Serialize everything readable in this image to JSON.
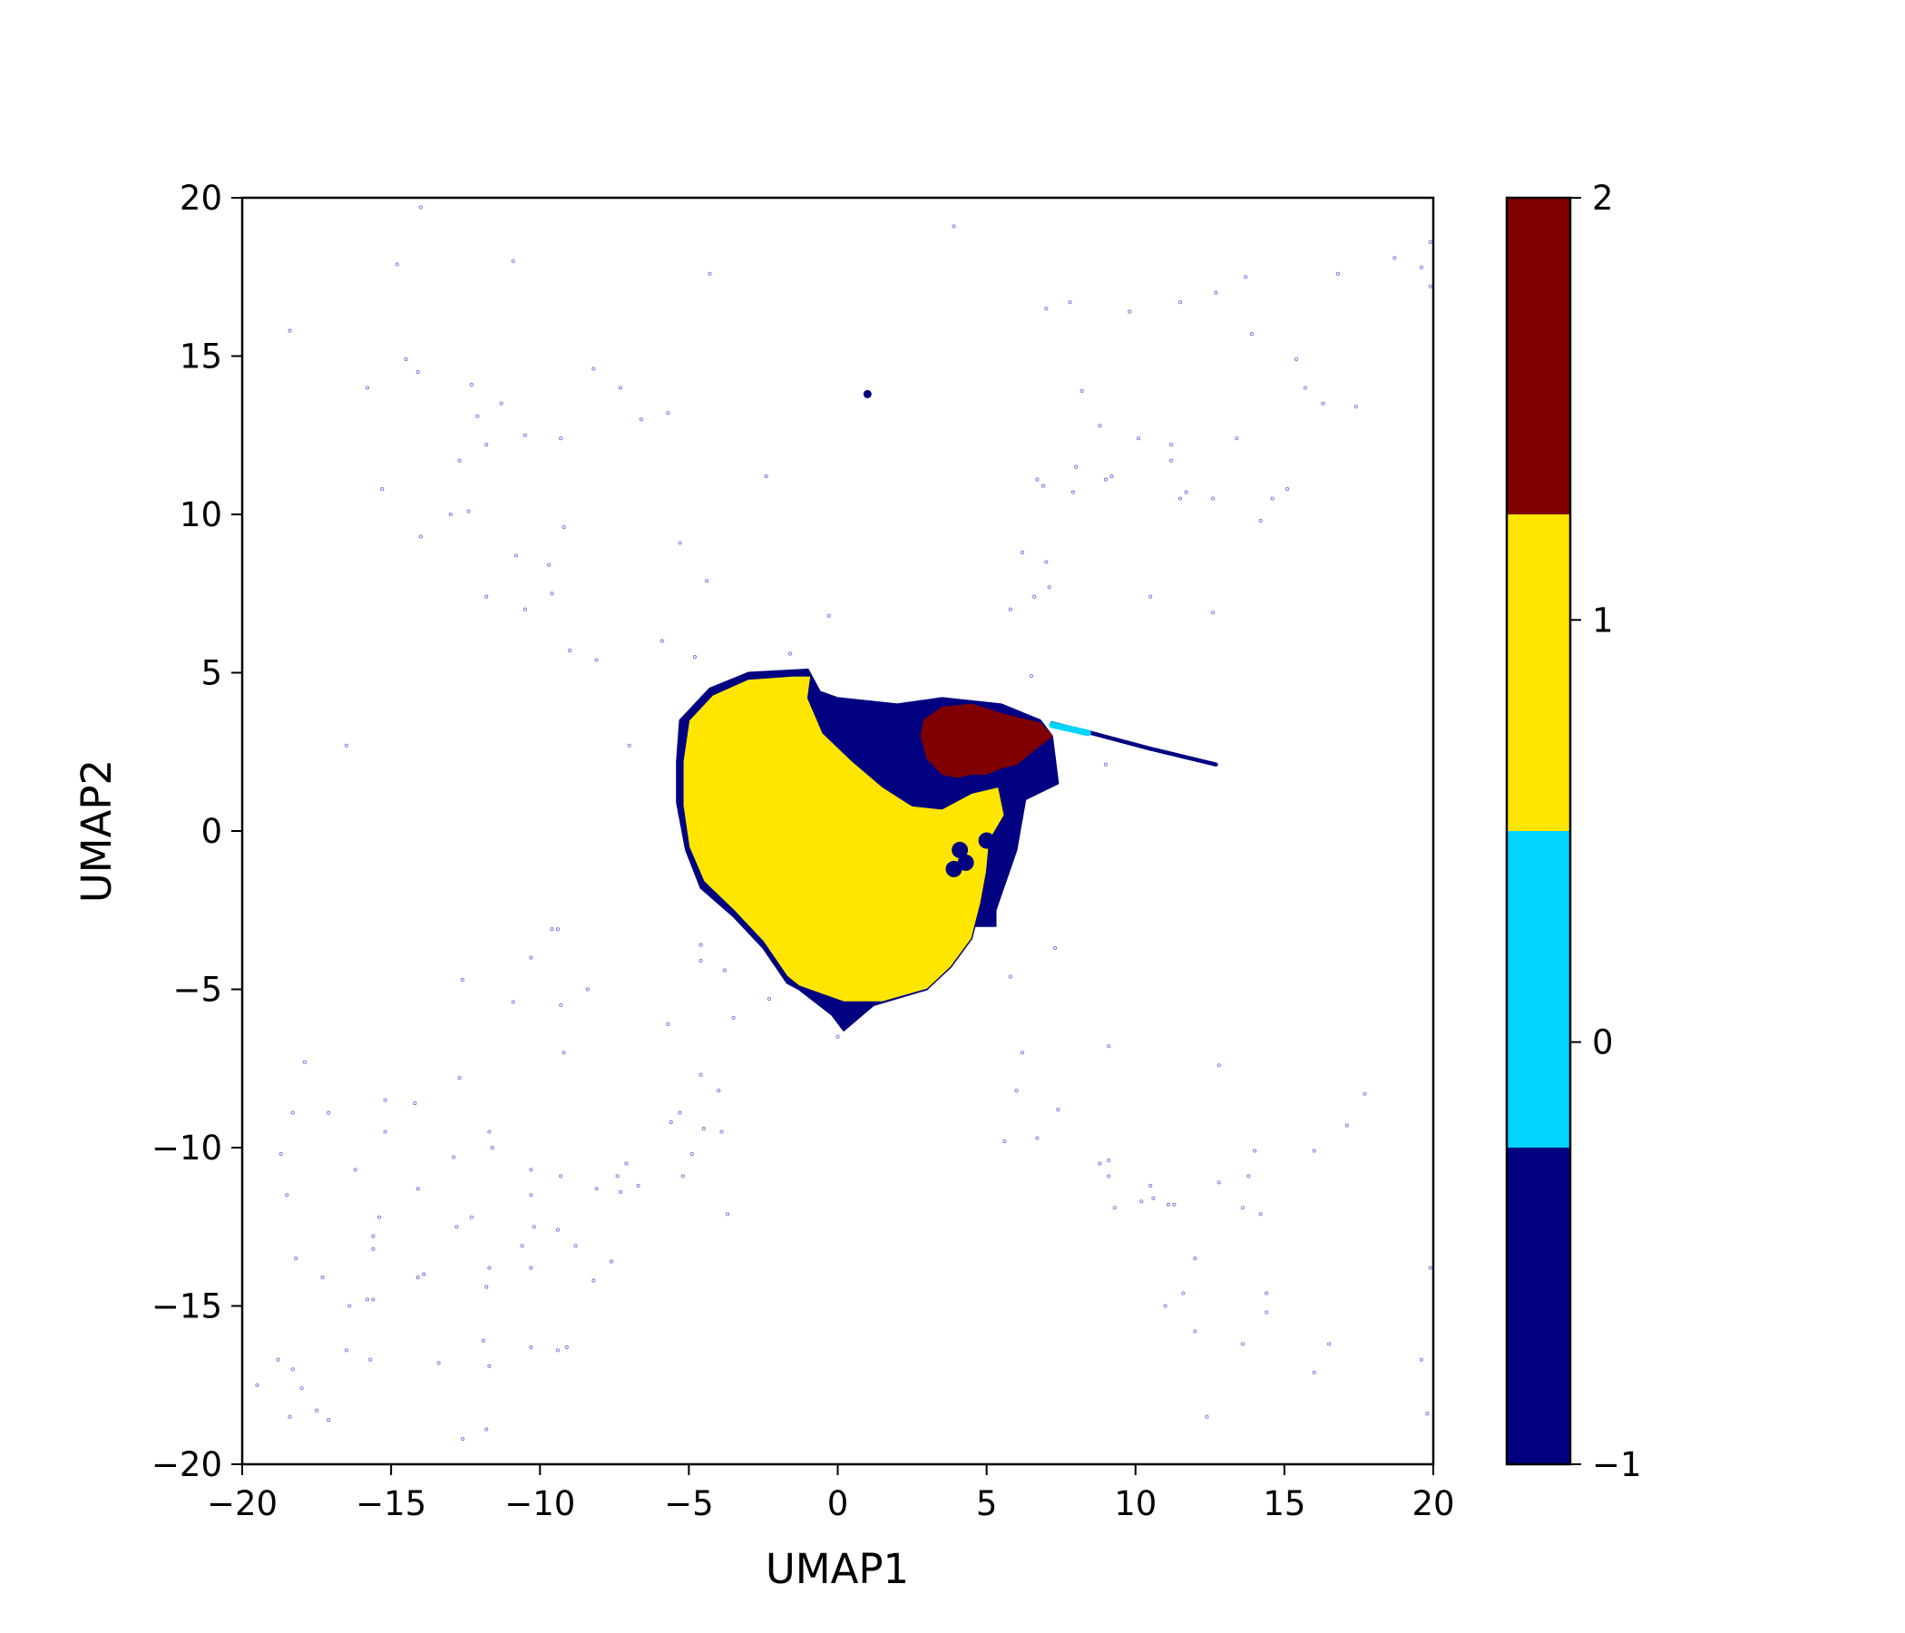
{
  "chart_data": {
    "type": "scatter",
    "xlabel": "UMAP1",
    "ylabel": "UMAP2",
    "xlim": [
      -20,
      20
    ],
    "ylim": [
      -20,
      20
    ],
    "xticks": [
      -20,
      -15,
      -10,
      -5,
      0,
      5,
      10,
      15,
      20
    ],
    "xtick_labels": [
      "−20",
      "−15",
      "−10",
      "−5",
      "0",
      "5",
      "10",
      "15",
      "20"
    ],
    "yticks": [
      -20,
      -15,
      -10,
      -5,
      0,
      5,
      10,
      15,
      20
    ],
    "ytick_labels": [
      "−20",
      "−15",
      "−10",
      "−5",
      "0",
      "5",
      "10",
      "15",
      "20"
    ],
    "grid": false,
    "colorbar": {
      "range": [
        -1,
        2
      ],
      "ticks": [
        -1,
        0,
        1,
        2
      ],
      "tick_labels": [
        "−1",
        "0",
        "1",
        "2"
      ],
      "levels": [
        {
          "from": -1.0,
          "to": -0.25,
          "color": "#000080"
        },
        {
          "from": -0.25,
          "to": 0.5,
          "color": "#00d4ff"
        },
        {
          "from": 0.5,
          "to": 1.25,
          "color": "#ffe600"
        },
        {
          "from": 1.25,
          "to": 2.0,
          "color": "#800000"
        }
      ]
    },
    "clusters": [
      {
        "label": 1,
        "color": "#ffe600",
        "outline": [
          [
            -5.0,
            3.5
          ],
          [
            -4.2,
            4.3
          ],
          [
            -3.0,
            4.8
          ],
          [
            -1.5,
            4.9
          ],
          [
            -0.9,
            4.9
          ],
          [
            -1.0,
            4.2
          ],
          [
            -0.5,
            3.1
          ],
          [
            0.5,
            2.2
          ],
          [
            1.5,
            1.4
          ],
          [
            2.5,
            0.8
          ],
          [
            3.5,
            0.7
          ],
          [
            4.5,
            1.2
          ],
          [
            5.4,
            1.4
          ],
          [
            5.6,
            0.5
          ],
          [
            5.1,
            -0.3
          ],
          [
            5.0,
            -1.3
          ],
          [
            4.8,
            -2.3
          ],
          [
            4.5,
            -3.4
          ],
          [
            3.8,
            -4.3
          ],
          [
            3.0,
            -5.0
          ],
          [
            1.5,
            -5.4
          ],
          [
            0.2,
            -5.4
          ],
          [
            -1.3,
            -4.9
          ],
          [
            -1.7,
            -4.6
          ],
          [
            -2.5,
            -3.5
          ],
          [
            -3.5,
            -2.5
          ],
          [
            -4.5,
            -1.6
          ],
          [
            -5.0,
            -0.5
          ],
          [
            -5.2,
            0.8
          ],
          [
            -5.2,
            2.2
          ]
        ]
      },
      {
        "label": -1,
        "color": "#000080",
        "outline": [
          [
            -5.3,
            3.5
          ],
          [
            -4.3,
            4.5
          ],
          [
            -3.0,
            5.0
          ],
          [
            -1.0,
            5.1
          ],
          [
            -0.6,
            4.4
          ],
          [
            0.0,
            4.2
          ],
          [
            2.0,
            4.0
          ],
          [
            3.5,
            4.2
          ],
          [
            5.5,
            4.0
          ],
          [
            6.8,
            3.5
          ],
          [
            7.2,
            3.0
          ],
          [
            7.4,
            1.5
          ],
          [
            6.3,
            1.0
          ],
          [
            6.0,
            -0.6
          ],
          [
            5.3,
            -2.5
          ],
          [
            5.3,
            -3.0
          ],
          [
            4.4,
            -3.0
          ],
          [
            3.8,
            -4.1
          ],
          [
            3.0,
            -5.0
          ],
          [
            1.2,
            -5.5
          ],
          [
            0.2,
            -6.3
          ],
          [
            -0.2,
            -5.8
          ],
          [
            -1.3,
            -5.0
          ],
          [
            -1.7,
            -4.8
          ],
          [
            -2.5,
            -3.7
          ],
          [
            -3.5,
            -2.7
          ],
          [
            -4.6,
            -1.8
          ],
          [
            -5.1,
            -0.6
          ],
          [
            -5.4,
            0.9
          ],
          [
            -5.4,
            2.2
          ]
        ]
      },
      {
        "label": 2,
        "color": "#800000",
        "outline": [
          [
            2.9,
            3.5
          ],
          [
            3.5,
            3.9
          ],
          [
            4.5,
            4.0
          ],
          [
            5.5,
            3.7
          ],
          [
            6.8,
            3.4
          ],
          [
            7.2,
            3.0
          ],
          [
            6.5,
            2.5
          ],
          [
            6.0,
            2.1
          ],
          [
            5.5,
            2.0
          ],
          [
            5.0,
            1.8
          ],
          [
            4.5,
            1.8
          ],
          [
            4.0,
            1.7
          ],
          [
            3.5,
            1.8
          ],
          [
            3.0,
            2.3
          ],
          [
            2.8,
            3.0
          ]
        ]
      }
    ],
    "tail": {
      "label": -1,
      "color": "#000080",
      "points": [
        [
          7.2,
          3.4
        ],
        [
          8.5,
          3.1
        ],
        [
          10.5,
          2.6
        ],
        [
          12.7,
          2.1
        ]
      ]
    },
    "small_cluster": {
      "label": -1,
      "color": "#000080",
      "x": 1.0,
      "y": 13.8
    },
    "highlight_segment": {
      "label": 0,
      "color": "#00d4ff",
      "points": [
        [
          7.2,
          3.35
        ],
        [
          8.4,
          3.1
        ]
      ]
    },
    "outliers": [
      [
        -14.0,
        19.7
      ],
      [
        -10.9,
        18.0
      ],
      [
        -14.8,
        17.9
      ],
      [
        -4.3,
        17.6
      ],
      [
        3.9,
        19.1
      ],
      [
        -18.4,
        15.8
      ],
      [
        -15.8,
        14.0
      ],
      [
        -14.5,
        14.9
      ],
      [
        -14.1,
        14.5
      ],
      [
        -8.2,
        14.6
      ],
      [
        -7.3,
        14.0
      ],
      [
        -6.6,
        13.0
      ],
      [
        -5.7,
        13.2
      ],
      [
        -12.3,
        14.1
      ],
      [
        -11.3,
        13.5
      ],
      [
        -12.1,
        13.1
      ],
      [
        -11.8,
        12.2
      ],
      [
        -12.7,
        11.7
      ],
      [
        -10.5,
        12.5
      ],
      [
        -9.3,
        12.4
      ],
      [
        -15.3,
        10.8
      ],
      [
        -13.0,
        10.0
      ],
      [
        -12.4,
        10.1
      ],
      [
        -14.0,
        9.3
      ],
      [
        -10.8,
        8.7
      ],
      [
        -9.7,
        8.4
      ],
      [
        -9.2,
        9.6
      ],
      [
        -11.8,
        7.4
      ],
      [
        -10.5,
        7.0
      ],
      [
        -9.6,
        7.5
      ],
      [
        -5.3,
        9.1
      ],
      [
        -4.4,
        7.9
      ],
      [
        -2.4,
        11.2
      ],
      [
        -9.0,
        5.7
      ],
      [
        -8.1,
        5.4
      ],
      [
        -5.9,
        6.0
      ],
      [
        -4.8,
        5.5
      ],
      [
        -7.0,
        2.7
      ],
      [
        -16.5,
        2.7
      ],
      [
        -0.3,
        6.8
      ],
      [
        -1.6,
        5.6
      ],
      [
        7.0,
        16.5
      ],
      [
        7.8,
        16.7
      ],
      [
        9.8,
        16.4
      ],
      [
        11.5,
        16.7
      ],
      [
        12.7,
        17.0
      ],
      [
        13.7,
        17.5
      ],
      [
        16.8,
        17.6
      ],
      [
        18.7,
        18.1
      ],
      [
        19.6,
        17.8
      ],
      [
        19.9,
        17.2
      ],
      [
        19.9,
        18.6
      ],
      [
        13.9,
        15.7
      ],
      [
        15.4,
        14.9
      ],
      [
        15.7,
        14.0
      ],
      [
        16.3,
        13.5
      ],
      [
        17.4,
        13.4
      ],
      [
        8.2,
        13.9
      ],
      [
        8.8,
        12.8
      ],
      [
        10.1,
        12.4
      ],
      [
        11.2,
        12.2
      ],
      [
        11.2,
        11.7
      ],
      [
        13.4,
        12.4
      ],
      [
        6.7,
        11.1
      ],
      [
        6.9,
        10.9
      ],
      [
        8.0,
        11.5
      ],
      [
        7.9,
        10.7
      ],
      [
        9.0,
        11.1
      ],
      [
        9.2,
        11.2
      ],
      [
        11.7,
        10.7
      ],
      [
        11.5,
        10.5
      ],
      [
        12.6,
        10.5
      ],
      [
        14.6,
        10.5
      ],
      [
        15.1,
        10.8
      ],
      [
        14.2,
        9.8
      ],
      [
        6.2,
        8.8
      ],
      [
        7.0,
        8.5
      ],
      [
        7.1,
        7.7
      ],
      [
        6.6,
        7.4
      ],
      [
        5.8,
        7.0
      ],
      [
        10.5,
        7.4
      ],
      [
        12.6,
        6.9
      ],
      [
        6.5,
        4.9
      ],
      [
        9.0,
        2.1
      ],
      [
        -9.6,
        -3.1
      ],
      [
        -9.4,
        -3.1
      ],
      [
        -10.3,
        -4.0
      ],
      [
        -12.6,
        -4.7
      ],
      [
        -8.4,
        -5.0
      ],
      [
        -10.9,
        -5.4
      ],
      [
        -9.3,
        -5.5
      ],
      [
        -9.2,
        -7.0
      ],
      [
        -12.7,
        -7.8
      ],
      [
        -17.9,
        -7.3
      ],
      [
        -17.1,
        -8.9
      ],
      [
        -18.3,
        -8.9
      ],
      [
        -16.2,
        -10.7
      ],
      [
        -18.7,
        -10.2
      ],
      [
        -18.5,
        -11.5
      ],
      [
        -15.2,
        -8.5
      ],
      [
        -15.2,
        -9.5
      ],
      [
        -14.2,
        -8.6
      ],
      [
        -12.9,
        -10.3
      ],
      [
        -11.7,
        -9.5
      ],
      [
        -11.6,
        -10.0
      ],
      [
        -14.1,
        -11.3
      ],
      [
        -10.3,
        -10.7
      ],
      [
        -10.3,
        -11.5
      ],
      [
        -9.3,
        -10.9
      ],
      [
        -8.1,
        -11.3
      ],
      [
        -7.4,
        -10.9
      ],
      [
        -7.1,
        -10.5
      ],
      [
        -7.3,
        -11.4
      ],
      [
        -6.7,
        -11.2
      ],
      [
        -5.6,
        -9.2
      ],
      [
        -5.3,
        -8.9
      ],
      [
        -4.9,
        -10.2
      ],
      [
        -4.5,
        -9.4
      ],
      [
        -3.9,
        -9.5
      ],
      [
        -4.0,
        -8.2
      ],
      [
        -3.7,
        -12.1
      ],
      [
        -5.2,
        -10.9
      ],
      [
        -4.6,
        -7.7
      ],
      [
        -5.7,
        -6.1
      ],
      [
        -3.5,
        -5.9
      ],
      [
        -4.6,
        -3.6
      ],
      [
        -4.6,
        -4.1
      ],
      [
        -3.8,
        -4.4
      ],
      [
        -2.3,
        -5.3
      ],
      [
        0.0,
        -6.5
      ],
      [
        -15.4,
        -12.2
      ],
      [
        -15.6,
        -12.8
      ],
      [
        -15.6,
        -13.2
      ],
      [
        -15.8,
        -14.8
      ],
      [
        -15.6,
        -14.8
      ],
      [
        -16.4,
        -15.0
      ],
      [
        -13.9,
        -14.0
      ],
      [
        -14.1,
        -14.1
      ],
      [
        -12.8,
        -12.5
      ],
      [
        -12.3,
        -12.2
      ],
      [
        -11.8,
        -14.4
      ],
      [
        -11.7,
        -13.8
      ],
      [
        -10.6,
        -13.1
      ],
      [
        -10.3,
        -13.8
      ],
      [
        -10.2,
        -12.5
      ],
      [
        -9.4,
        -12.6
      ],
      [
        -8.8,
        -13.1
      ],
      [
        -8.2,
        -14.2
      ],
      [
        -7.6,
        -13.6
      ],
      [
        -17.3,
        -14.1
      ],
      [
        -18.2,
        -13.5
      ],
      [
        -16.5,
        -16.4
      ],
      [
        -15.7,
        -16.7
      ],
      [
        -18.8,
        -16.7
      ],
      [
        -19.5,
        -17.5
      ],
      [
        -18.3,
        -17.0
      ],
      [
        -18.0,
        -17.6
      ],
      [
        -17.5,
        -18.3
      ],
      [
        -17.1,
        -18.6
      ],
      [
        -18.4,
        -18.5
      ],
      [
        -13.4,
        -16.8
      ],
      [
        -11.9,
        -16.1
      ],
      [
        -11.7,
        -16.9
      ],
      [
        -10.3,
        -16.3
      ],
      [
        -9.4,
        -16.4
      ],
      [
        -9.1,
        -16.3
      ],
      [
        -11.8,
        -18.9
      ],
      [
        -12.6,
        -19.2
      ],
      [
        5.6,
        -9.8
      ],
      [
        6.2,
        -7.0
      ],
      [
        6.0,
        -8.2
      ],
      [
        6.7,
        -9.7
      ],
      [
        7.4,
        -8.8
      ],
      [
        7.3,
        -3.7
      ],
      [
        5.8,
        -4.6
      ],
      [
        9.1,
        -6.8
      ],
      [
        8.8,
        -10.5
      ],
      [
        9.1,
        -10.4
      ],
      [
        9.1,
        -10.9
      ],
      [
        9.3,
        -11.9
      ],
      [
        10.2,
        -11.7
      ],
      [
        10.5,
        -11.2
      ],
      [
        10.6,
        -11.6
      ],
      [
        11.1,
        -11.8
      ],
      [
        11.3,
        -11.8
      ],
      [
        12.8,
        -11.1
      ],
      [
        12.8,
        -7.4
      ],
      [
        13.6,
        -11.9
      ],
      [
        13.8,
        -10.9
      ],
      [
        14.0,
        -10.1
      ],
      [
        14.2,
        -12.1
      ],
      [
        16.0,
        -10.1
      ],
      [
        17.1,
        -9.3
      ],
      [
        17.7,
        -8.3
      ],
      [
        11.0,
        -15.0
      ],
      [
        11.6,
        -14.6
      ],
      [
        12.0,
        -13.5
      ],
      [
        12.0,
        -15.8
      ],
      [
        13.6,
        -16.2
      ],
      [
        14.4,
        -14.6
      ],
      [
        14.4,
        -15.2
      ],
      [
        16.0,
        -17.1
      ],
      [
        16.5,
        -16.2
      ],
      [
        19.9,
        -13.8
      ],
      [
        19.6,
        -16.7
      ],
      [
        19.8,
        -18.4
      ],
      [
        12.4,
        -18.5
      ]
    ]
  }
}
